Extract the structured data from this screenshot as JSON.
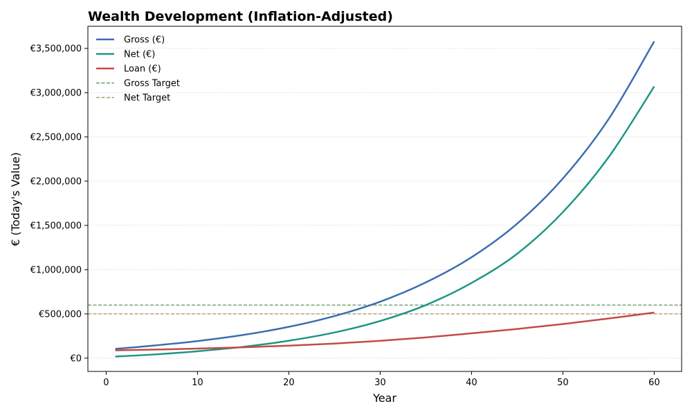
{
  "chart_data": {
    "type": "line",
    "title": "Wealth Development (Inflation-Adjusted)",
    "xlabel": "Year",
    "ylabel": "€ (Today's Value)",
    "xlim": [
      -2,
      63
    ],
    "ylim": [
      -150000,
      3750000
    ],
    "x_ticks": [
      0,
      10,
      20,
      30,
      40,
      50,
      60
    ],
    "x_tick_labels": [
      "0",
      "10",
      "20",
      "30",
      "40",
      "50",
      "60"
    ],
    "y_ticks": [
      0,
      500000,
      1000000,
      1500000,
      2000000,
      2500000,
      3000000,
      3500000
    ],
    "y_tick_labels": [
      "€0",
      "€500,000",
      "€1,000,000",
      "€1,500,000",
      "€2,000,000",
      "€2,500,000",
      "€3,000,000",
      "€3,500,000"
    ],
    "grid": "horizontal",
    "legend_position": "top-left",
    "x": [
      1,
      5,
      10,
      15,
      20,
      25,
      30,
      35,
      40,
      45,
      50,
      55,
      60
    ],
    "series": [
      {
        "name": "Gross (€)",
        "color": "#3a6eaf",
        "style": "solid",
        "values": [
          105000,
          140000,
          193000,
          262000,
          354000,
          476000,
          638000,
          856000,
          1140000,
          1520000,
          2030000,
          2700000,
          3580000
        ]
      },
      {
        "name": "Net (€)",
        "color": "#1b9683",
        "style": "solid",
        "values": [
          18000,
          40000,
          78000,
          128000,
          197000,
          290000,
          420000,
          600000,
          850000,
          1180000,
          1650000,
          2270000,
          3070000
        ]
      },
      {
        "name": "Loan (€)",
        "color": "#c44a47",
        "style": "solid",
        "values": [
          88000,
          96000,
          108000,
          123000,
          141000,
          165000,
          196000,
          234000,
          281000,
          330000,
          385000,
          448000,
          515000
        ]
      }
    ],
    "reference_lines": [
      {
        "name": "Gross Target",
        "value": 600000,
        "color": "#6a9a6a",
        "style": "dashed"
      },
      {
        "name": "Net Target",
        "value": 500000,
        "color": "#a8a06a",
        "style": "dashed"
      }
    ]
  }
}
